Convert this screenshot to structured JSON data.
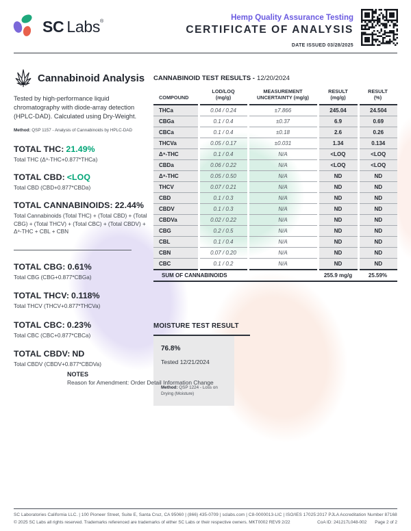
{
  "header": {
    "brand_sc": "SC",
    "brand_labs": "Labs",
    "brand_reg": "®",
    "program": "Hemp Quality Assurance Testing",
    "title": "CERTIFICATE OF ANALYSIS",
    "date_issued": "DATE ISSUED 03/28/2025"
  },
  "left_panel": {
    "section_title": "Cannabinoid Analysis",
    "description": "Tested by high-performance liquid chromatography with diode-array detection (HPLC-DAD). Calculated using Dry-Weight.",
    "method_label": "Method:",
    "method": "QSP 1157 - Analysis of Cannabinoids by HPLC-DAD",
    "totals_primary": [
      {
        "label": "TOTAL THC:",
        "value": "21.49%",
        "accent": true,
        "formula": "Total THC (Δ⁹-THC+0.877*THCa)"
      },
      {
        "label": "TOTAL CBD:",
        "value": "<LOQ",
        "accent": true,
        "formula": "Total CBD (CBD+0.877*CBDa)"
      },
      {
        "label": "TOTAL CANNABINOIDS:",
        "value": "22.44%",
        "accent": false,
        "formula": "Total Cannabinoids (Total THC) + (Total CBD) + (Total CBG) + (Total THCV) + (Total CBC) + (Total CBDV) + Δ⁸-THC + CBL + CBN"
      }
    ],
    "totals_secondary": [
      {
        "label": "TOTAL CBG:",
        "value": "0.61%",
        "accent": false,
        "formula": "Total CBG (CBG+0.877*CBGa)"
      },
      {
        "label": "TOTAL THCV:",
        "value": "0.118%",
        "accent": false,
        "formula": "Total THCV (THCV+0.877*THCVa)"
      },
      {
        "label": "TOTAL CBC:",
        "value": "0.23%",
        "accent": false,
        "formula": "Total CBC (CBC+0.877*CBCa)"
      },
      {
        "label": "TOTAL CBDV:",
        "value": "ND",
        "accent": false,
        "formula": "Total CBDV (CBDV+0.877*CBDVa)"
      }
    ]
  },
  "results_table": {
    "title_bold": "CANNABINOID TEST RESULTS -",
    "title_date": "12/20/2024",
    "columns": [
      "COMPOUND",
      "LOD/LOQ\n(mg/g)",
      "MEASUREMENT\nUNCERTAINTY (mg/g)",
      "RESULT\n(mg/g)",
      "RESULT\n(%)"
    ],
    "rows": [
      [
        "THCa",
        "0.04 / 0.24",
        "±7.866",
        "245.04",
        "24.504"
      ],
      [
        "CBGa",
        "0.1 / 0.4",
        "±0.37",
        "6.9",
        "0.69"
      ],
      [
        "CBCa",
        "0.1 / 0.4",
        "±0.18",
        "2.6",
        "0.26"
      ],
      [
        "THCVa",
        "0.05 / 0.17",
        "±0.031",
        "1.34",
        "0.134"
      ],
      [
        "Δ⁹-THC",
        "0.1 / 0.4",
        "N/A",
        "<LOQ",
        "<LOQ"
      ],
      [
        "CBDa",
        "0.06 / 0.22",
        "N/A",
        "<LOQ",
        "<LOQ"
      ],
      [
        "Δ⁸-THC",
        "0.05 / 0.50",
        "N/A",
        "ND",
        "ND"
      ],
      [
        "THCV",
        "0.07 / 0.21",
        "N/A",
        "ND",
        "ND"
      ],
      [
        "CBD",
        "0.1 / 0.3",
        "N/A",
        "ND",
        "ND"
      ],
      [
        "CBDV",
        "0.1 / 0.3",
        "N/A",
        "ND",
        "ND"
      ],
      [
        "CBDVa",
        "0.02 / 0.22",
        "N/A",
        "ND",
        "ND"
      ],
      [
        "CBG",
        "0.2 / 0.5",
        "N/A",
        "ND",
        "ND"
      ],
      [
        "CBL",
        "0.1 / 0.4",
        "N/A",
        "ND",
        "ND"
      ],
      [
        "CBN",
        "0.07 / 0.20",
        "N/A",
        "ND",
        "ND"
      ],
      [
        "CBC",
        "0.1 / 0.2",
        "N/A",
        "ND",
        "ND"
      ]
    ],
    "sum_row": {
      "label": "SUM OF CANNABINOIDS",
      "mg": "255.9 mg/g",
      "pct": "25.59%"
    }
  },
  "moisture": {
    "title": "MOISTURE TEST RESULT",
    "value": "76.8%",
    "tested": "Tested 12/21/2024",
    "method_label": "Method:",
    "method": "QSP 1224 - Loss on Drying (Moisture)"
  },
  "notes": {
    "title": "NOTES",
    "body": "Reason for Amendment: Order Detail Information Change"
  },
  "footer": {
    "line1": "SC Laboratories California LLC. | 100 Pioneer Street, Suite E, Santa Cruz, CA 95060 | (866) 435-0709 | sclabs.com | C8-0000013-LIC | ISO/IES 17025:2017 PJLA Accreditation Number 87168",
    "line2": "© 2025 SC Labs all rights reserved. Trademarks referenced are trademarks of either SC Labs or their respective owners. MKT0002 REV9 2/22",
    "coa_id": "CoA ID: 241217L048-002",
    "page": "Page 2 of 2"
  },
  "colors": {
    "accent_green": "#00a577",
    "brand_purple": "#6a5ae0",
    "logo_teal": "#1ea87c",
    "logo_coral": "#e8604c",
    "logo_purple": "#7b68d9"
  }
}
